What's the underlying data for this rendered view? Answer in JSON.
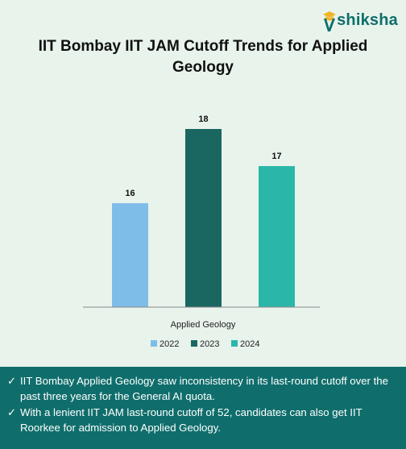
{
  "brand": {
    "logo_text": "shiksha",
    "logo_icon": "graduation-cap-icon",
    "color": "#0d6f6a"
  },
  "title": "IIT Bombay IIT JAM Cutoff Trends for Applied Geology",
  "chart_data": {
    "type": "bar",
    "categories": [
      "Applied Geology"
    ],
    "series": [
      {
        "name": "2022",
        "values": [
          16
        ],
        "color": "#7fbde9"
      },
      {
        "name": "2023",
        "values": [
          18
        ],
        "color": "#1a6761"
      },
      {
        "name": "2024",
        "values": [
          17
        ],
        "color": "#2ab7aa"
      }
    ],
    "data_labels": [
      "16",
      "18",
      "17"
    ],
    "ylim": [
      13.2,
      18.0
    ],
    "grid": false,
    "legend_position": "bottom"
  },
  "notes": [
    {
      "icon": "checkmark-icon",
      "text": "IIT Bombay Applied Geology saw inconsistency in its last-round cutoff over the past three years for the General AI quota."
    },
    {
      "icon": "checkmark-icon",
      "text": "With a lenient IIT JAM last-round cutoff of 52, candidates can also get IIT Roorkee for admission to Applied Geology."
    }
  ],
  "colors": {
    "background": "#e8f3ec",
    "footer": "#0f6e6c",
    "title": "#111111"
  }
}
